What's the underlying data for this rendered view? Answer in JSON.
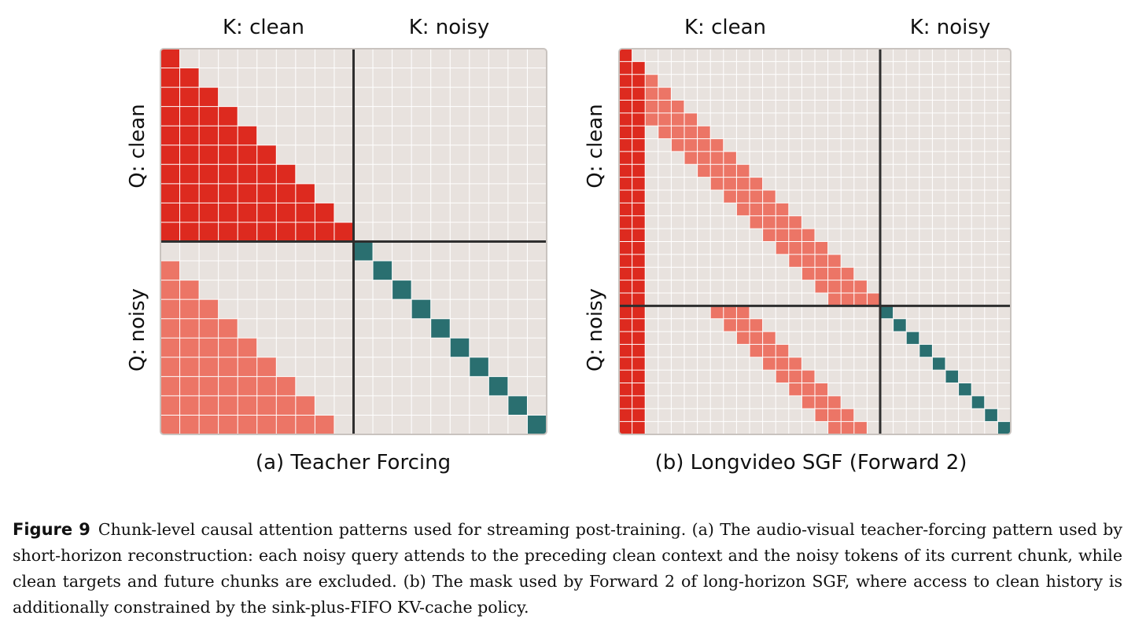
{
  "panels": [
    {
      "id": "a",
      "col_headers": [
        "K: clean",
        "K: noisy"
      ],
      "row_headers": [
        "Q: clean",
        "Q: noisy"
      ],
      "sublabel": "(a) Teacher Forcing"
    },
    {
      "id": "b",
      "col_headers": [
        "K: clean",
        "K: noisy"
      ],
      "row_headers": [
        "Q: clean",
        "Q: noisy"
      ],
      "sublabel": "(b) Longvideo SGF (Forward 2)"
    }
  ],
  "colors": {
    "background": "#e8e2de",
    "grid": "#ffffff",
    "divider": "#2e2e2e",
    "clean_context": "#dd2a1f",
    "noisy_context": "#ec7566",
    "current_chunk": "#2a6f70"
  },
  "caption": {
    "label": "Figure 9",
    "text": "Chunk-level causal attention patterns used for streaming post-training. (a) The audio-visual teacher-forcing pattern used by short-horizon reconstruction: each noisy query attends to the preceding clean context and the noisy tokens of its current chunk, while clean targets and future chunks are excluded. (b) The mask used by Forward 2 of long-horizon SGF, where access to clean history is additionally constrained by the sink-plus-FIFO KV-cache policy."
  }
}
